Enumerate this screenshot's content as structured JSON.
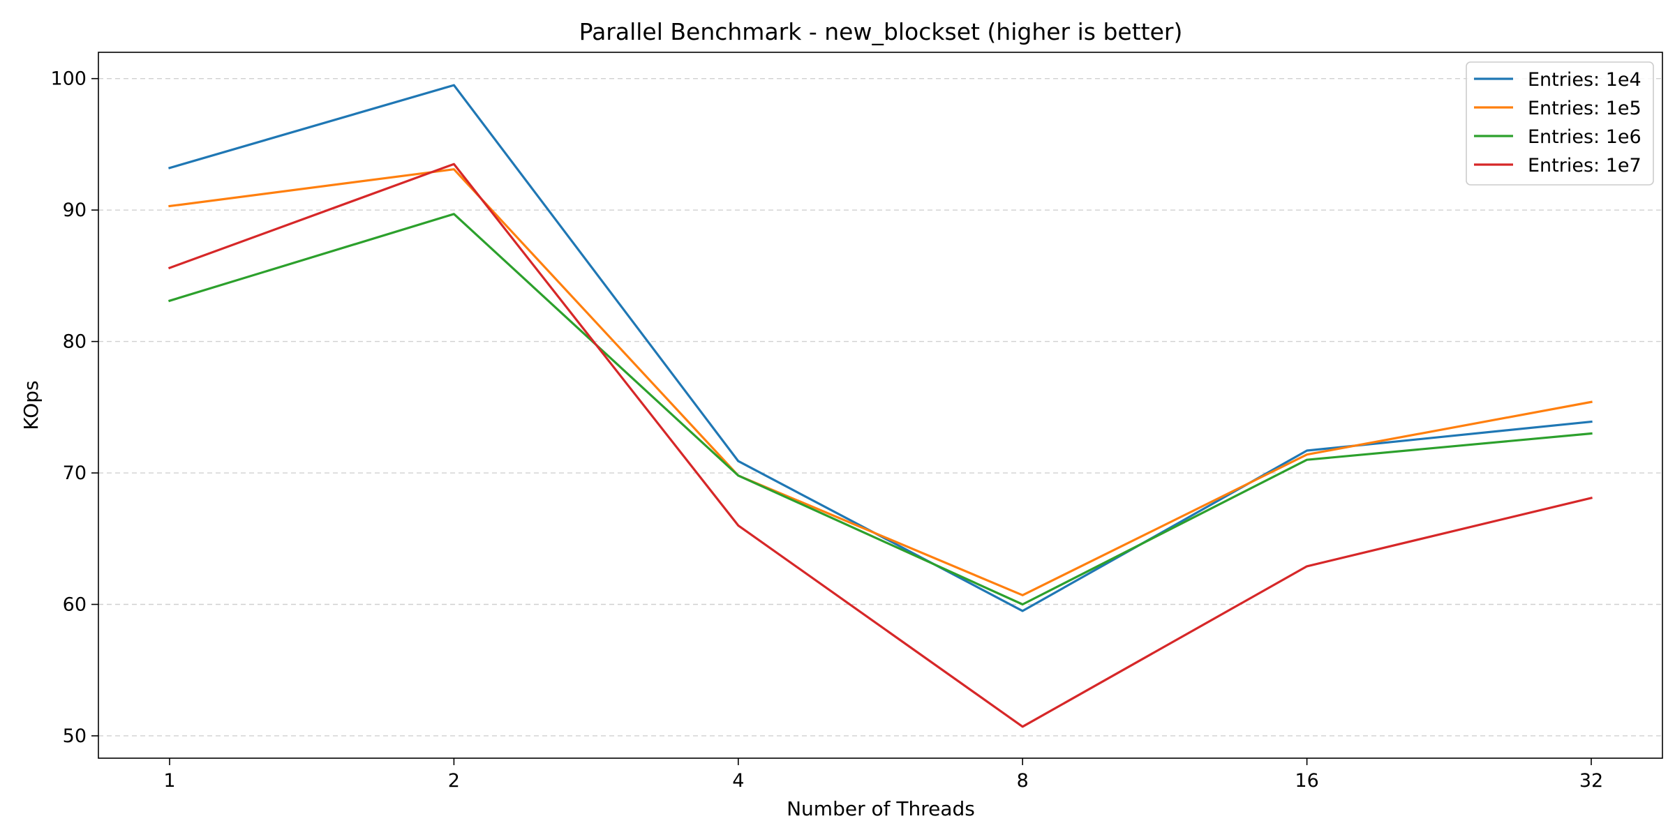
{
  "chart_data": {
    "type": "line",
    "title": "Parallel Benchmark - new_blockset (higher is better)",
    "xlabel": "Number of Threads",
    "ylabel": "KOps",
    "x": [
      "1",
      "2",
      "4",
      "8",
      "16",
      "32"
    ],
    "x_scale": "log2",
    "ylim": [
      48.3,
      102.0
    ],
    "yticks": [
      50,
      60,
      70,
      80,
      90,
      100
    ],
    "grid": "horizontal-dashed",
    "legend_position": "top-right",
    "series": [
      {
        "name": "Entries: 1e4",
        "color": "#1f77b4",
        "values": [
          93.2,
          99.5,
          70.9,
          59.5,
          71.7,
          73.9
        ]
      },
      {
        "name": "Entries: 1e5",
        "color": "#ff7f0e",
        "values": [
          90.3,
          93.1,
          69.8,
          60.7,
          71.4,
          75.4
        ]
      },
      {
        "name": "Entries: 1e6",
        "color": "#2ca02c",
        "values": [
          83.1,
          89.7,
          69.8,
          60.0,
          71.0,
          73.0
        ]
      },
      {
        "name": "Entries: 1e7",
        "color": "#d62728",
        "values": [
          85.6,
          93.5,
          66.0,
          50.7,
          62.9,
          68.1
        ]
      }
    ]
  }
}
